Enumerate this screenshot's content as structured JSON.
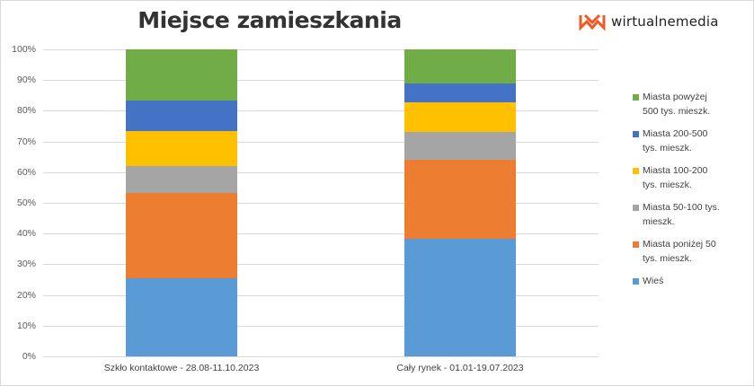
{
  "header": {
    "title": "Miejsce zamieszkania",
    "logo_text": "wirtualnemedia",
    "logo_color": "#f05a22"
  },
  "chart_data": {
    "type": "bar",
    "stacked": true,
    "percent": true,
    "title": "Miejsce zamieszkania",
    "xlabel": "",
    "ylabel": "",
    "ylim": [
      0,
      100
    ],
    "yticks": [
      "0%",
      "10%",
      "20%",
      "30%",
      "40%",
      "50%",
      "60%",
      "70%",
      "80%",
      "90%",
      "100%"
    ],
    "grid": true,
    "legend_position": "right",
    "categories": [
      "Szkło kontaktowe - 28.08-11.10.2023",
      "Cały rynek - 01.01-19.07.2023"
    ],
    "series": [
      {
        "name": "Wieś",
        "color": "#5b9bd5",
        "values": [
          25.4,
          38.3
        ]
      },
      {
        "name": "Miasta poniżej 50 tys. mieszk.",
        "color": "#ed7d31",
        "values": [
          27.8,
          25.7
        ]
      },
      {
        "name": "Miasta 50-100 tys. mieszk.",
        "color": "#a5a5a5",
        "values": [
          8.8,
          9.1
        ]
      },
      {
        "name": "Miasta 100-200 tys. mieszk.",
        "color": "#ffc000",
        "values": [
          11.4,
          9.6
        ]
      },
      {
        "name": "Miasta 200-500 tys. mieszk.",
        "color": "#4472c4",
        "values": [
          9.9,
          6.2
        ]
      },
      {
        "name": "Miasta powyżej 500 tys. mieszk.",
        "color": "#70ad47",
        "values": [
          16.7,
          11.1
        ]
      }
    ]
  },
  "legend": {
    "items": [
      {
        "line1": "Miasta powyżej",
        "line2": "500 tys. mieszk.",
        "color": "#70ad47"
      },
      {
        "line1": "Miasta 200-500",
        "line2": "tys. mieszk.",
        "color": "#4472c4"
      },
      {
        "line1": "Miasta 100-200",
        "line2": "tys. mieszk.",
        "color": "#ffc000"
      },
      {
        "line1": "Miasta 50-100 tys.",
        "line2": "mieszk.",
        "color": "#a5a5a5"
      },
      {
        "line1": "Miasta poniżej 50",
        "line2": "tys. mieszk.",
        "color": "#ed7d31"
      },
      {
        "line1": "Wieś",
        "line2": "",
        "color": "#5b9bd5"
      }
    ]
  }
}
